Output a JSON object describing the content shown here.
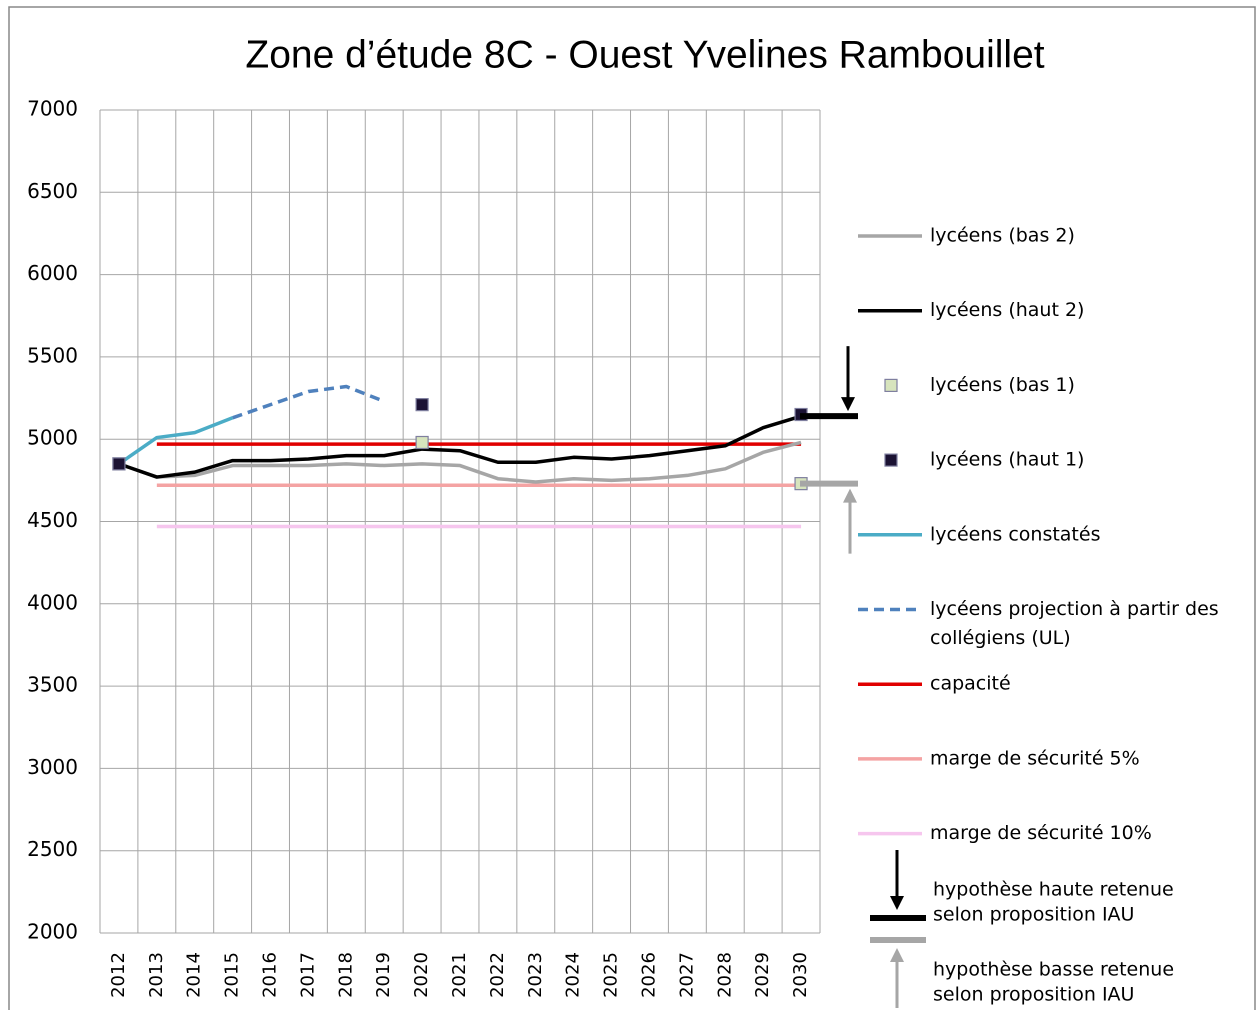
{
  "chart_data": {
    "type": "line",
    "title": "Zone d’étude 8C - Ouest Yvelines Rambouillet",
    "categories": [
      "2012",
      "2013",
      "2014",
      "2015",
      "2016",
      "2017",
      "2018",
      "2019",
      "2020",
      "2021",
      "2022",
      "2023",
      "2024",
      "2025",
      "2026",
      "2027",
      "2028",
      "2029",
      "2030"
    ],
    "ylim": [
      2000,
      7000
    ],
    "yticks": [
      2000,
      2500,
      3000,
      3500,
      4000,
      4500,
      5000,
      5500,
      6000,
      6500,
      7000
    ],
    "grid": true,
    "legend": "right",
    "series": [
      {
        "name": [
          "lycéens (bas 2)"
        ],
        "color": "#a6a6a6",
        "style": "line",
        "values": [
          4850,
          4770,
          4780,
          4840,
          4840,
          4840,
          4850,
          4840,
          4850,
          4840,
          4760,
          4740,
          4760,
          4750,
          4760,
          4780,
          4820,
          4920,
          4980
        ]
      },
      {
        "name": [
          "lycéens (haut 2)"
        ],
        "color": "#000000",
        "style": "line",
        "values": [
          4850,
          4770,
          4800,
          4870,
          4870,
          4880,
          4900,
          4900,
          4940,
          4930,
          4860,
          4860,
          4890,
          4880,
          4900,
          4930,
          4960,
          5070,
          5140
        ]
      },
      {
        "name": [
          "lycéens (bas 1)"
        ],
        "color": "#d7e4bd",
        "style": "markers",
        "values": [
          4850,
          null,
          null,
          null,
          null,
          null,
          null,
          null,
          4980,
          null,
          null,
          null,
          null,
          null,
          null,
          null,
          null,
          null,
          4730
        ]
      },
      {
        "name": [
          "lycéens (haut 1)"
        ],
        "color": "#1b1233",
        "style": "markers",
        "values": [
          4850,
          null,
          null,
          null,
          null,
          null,
          null,
          null,
          5210,
          null,
          null,
          null,
          null,
          null,
          null,
          null,
          null,
          null,
          5150
        ]
      },
      {
        "name": [
          "lycéens constatés"
        ],
        "color": "#4bacc6",
        "style": "line",
        "values": [
          4850,
          5010,
          5040,
          5130,
          null,
          null,
          null,
          null,
          null,
          null,
          null,
          null,
          null,
          null,
          null,
          null,
          null,
          null,
          null
        ]
      },
      {
        "name": [
          "lycéens projection à partir des",
          "collégiens (UL)"
        ],
        "color": "#4f81bd",
        "style": "line",
        "dash": true,
        "values": [
          null,
          null,
          null,
          5130,
          5210,
          5290,
          5320,
          5230,
          null,
          null,
          null,
          null,
          null,
          null,
          null,
          null,
          null,
          null,
          null
        ]
      },
      {
        "name": [
          "capacité"
        ],
        "color": "#e00000",
        "style": "line",
        "values": [
          null,
          4970,
          4970,
          4970,
          4970,
          4970,
          4970,
          4970,
          4970,
          4970,
          4970,
          4970,
          4970,
          4970,
          4970,
          4970,
          4970,
          4970,
          4970
        ]
      },
      {
        "name": [
          "marge de sécurité 5%"
        ],
        "color": "#f4a3a3",
        "style": "line",
        "values": [
          null,
          4720,
          4720,
          4720,
          4720,
          4720,
          4720,
          4720,
          4720,
          4720,
          4720,
          4720,
          4720,
          4720,
          4720,
          4720,
          4720,
          4720,
          4720
        ]
      },
      {
        "name": [
          "marge de sécurité 10%"
        ],
        "color": "#f6c6ee",
        "style": "line",
        "values": [
          null,
          4470,
          4470,
          4470,
          4470,
          4470,
          4470,
          4470,
          4470,
          4470,
          4470,
          4470,
          4470,
          4470,
          4470,
          4470,
          4470,
          4470,
          4470
        ]
      }
    ],
    "hypotheses": [
      {
        "name": [
          "hypothèse haute retenue",
          "selon proposition IAU"
        ],
        "color": "#000000",
        "value": 5140,
        "direction": "down"
      },
      {
        "name": [
          "hypothèse basse retenue",
          "selon proposition IAU"
        ],
        "color": "#a6a6a6",
        "value": 4730,
        "direction": "up"
      }
    ]
  }
}
